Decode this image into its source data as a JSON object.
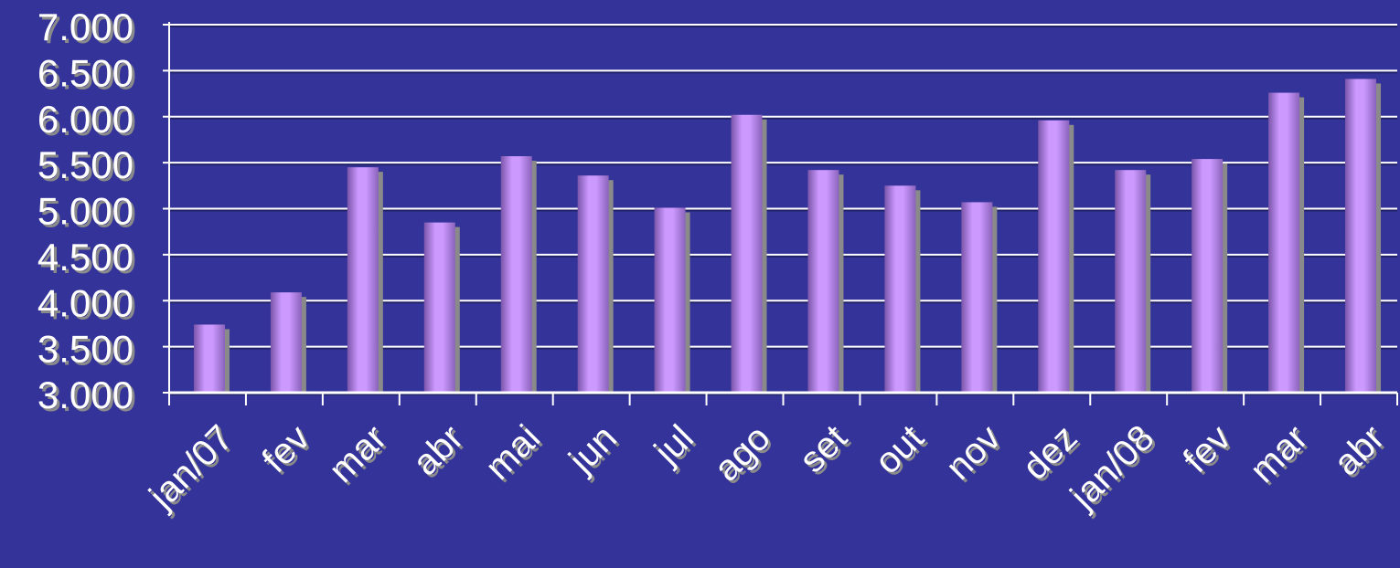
{
  "chart_data": {
    "type": "bar",
    "categories": [
      "jan/07",
      "fev",
      "mar",
      "abr",
      "mai",
      "jun",
      "jul",
      "ago",
      "set",
      "out",
      "nov",
      "dez",
      "jan/08",
      "fev",
      "mar",
      "abr"
    ],
    "values": [
      3740,
      4090,
      5450,
      4850,
      5570,
      5360,
      5010,
      6020,
      5420,
      5250,
      5070,
      5960,
      5420,
      5540,
      6260,
      6410
    ],
    "yticks": [
      "3.000",
      "3.500",
      "4.000",
      "4.500",
      "5.000",
      "5.500",
      "6.000",
      "6.500",
      "7.000"
    ],
    "ylim": [
      3000,
      7000
    ],
    "grid": true,
    "legend": "none",
    "colors": {
      "background": "#333399",
      "bar_light": "#cc99ff",
      "bar_dark": "#7a55aa",
      "shadow": "#8a8a8a",
      "grid": "#ffffff",
      "text": "#ffffff"
    }
  }
}
